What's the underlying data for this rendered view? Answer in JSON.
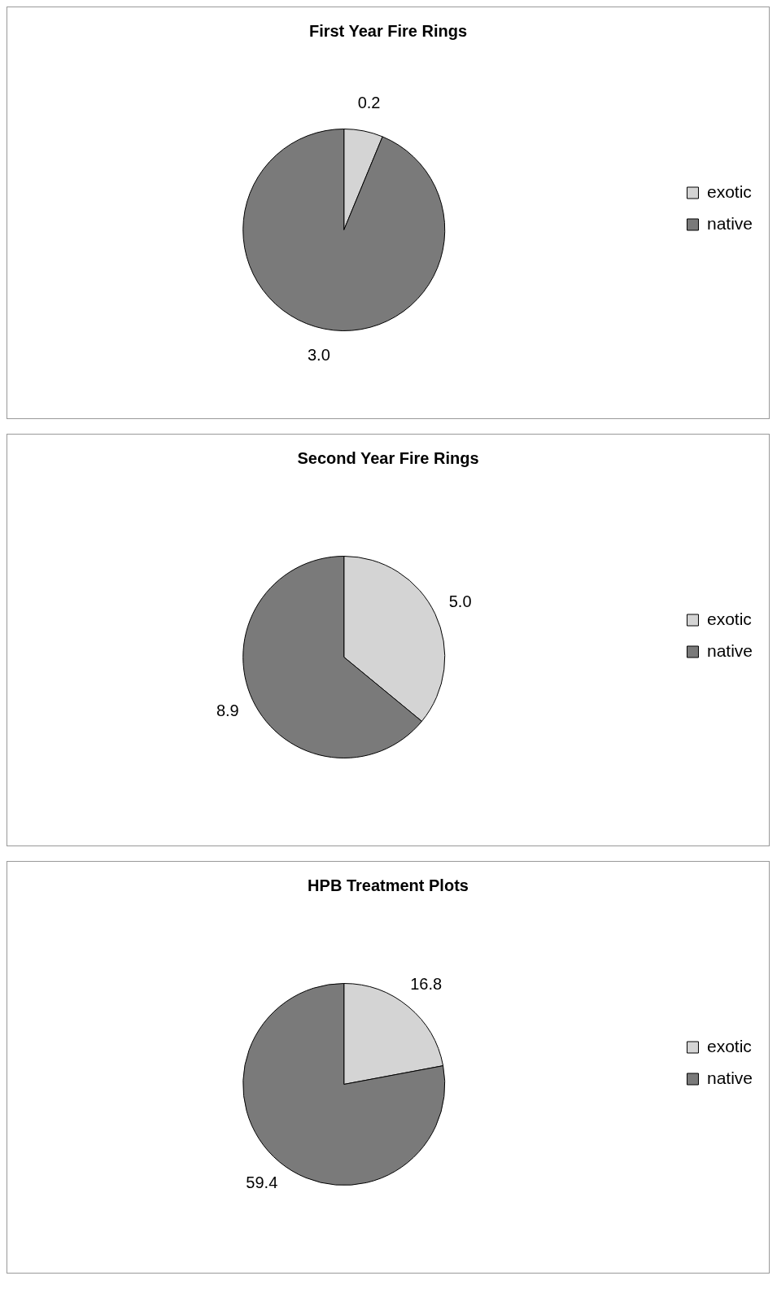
{
  "chart_data": [
    {
      "type": "pie",
      "title": "First Year Fire Rings",
      "categories": [
        "exotic",
        "native"
      ],
      "values": [
        0.2,
        3.0
      ],
      "value_labels": [
        "0.2",
        "3.0"
      ],
      "colors": [
        "#d4d4d4",
        "#7a7a7a"
      ],
      "legend": "right"
    },
    {
      "type": "pie",
      "title": "Second Year Fire Rings",
      "categories": [
        "exotic",
        "native"
      ],
      "values": [
        5.0,
        8.9
      ],
      "value_labels": [
        "5.0",
        "8.9"
      ],
      "colors": [
        "#d4d4d4",
        "#7a7a7a"
      ],
      "legend": "right"
    },
    {
      "type": "pie",
      "title": "HPB Treatment Plots",
      "categories": [
        "exotic",
        "native"
      ],
      "values": [
        16.8,
        59.4
      ],
      "value_labels": [
        "16.8",
        "59.4"
      ],
      "colors": [
        "#d4d4d4",
        "#7a7a7a"
      ],
      "legend": "right"
    }
  ]
}
